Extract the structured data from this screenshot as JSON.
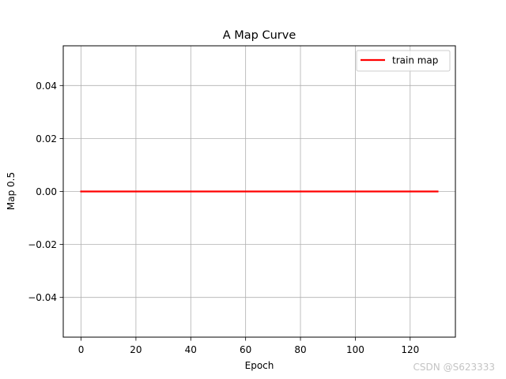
{
  "chart_data": {
    "type": "line",
    "title": "A Map Curve",
    "xlabel": "Epoch",
    "ylabel": "Map 0.5",
    "xlim": [
      -6.5,
      136.5
    ],
    "ylim": [
      -0.055,
      0.055
    ],
    "xticks": [
      0,
      20,
      40,
      60,
      80,
      100,
      120
    ],
    "xtick_labels": [
      "0",
      "20",
      "40",
      "60",
      "80",
      "100",
      "120"
    ],
    "yticks": [
      -0.04,
      -0.02,
      0.0,
      0.02,
      0.04
    ],
    "ytick_labels": [
      "−0.04",
      "−0.02",
      "0.00",
      "0.02",
      "0.04"
    ],
    "grid": true,
    "legend_position": "top-right",
    "series": [
      {
        "name": "train map",
        "color": "#ff0000",
        "x": [
          0,
          130
        ],
        "y": [
          0.0,
          0.0
        ]
      }
    ]
  },
  "watermark": "CSDN @S623333"
}
